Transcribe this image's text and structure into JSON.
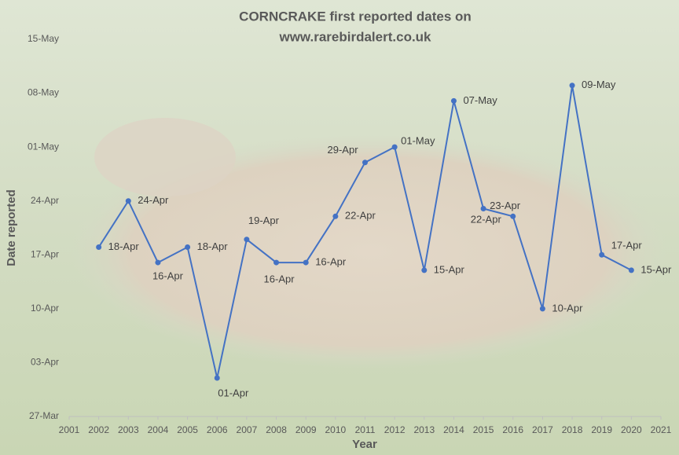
{
  "chart_data": {
    "type": "line",
    "title": "CORNCRAKE first reported dates on",
    "subtitle": "www.rarebirdalert.co.uk",
    "x_label": "Year",
    "y_label": "Date reported",
    "x": [
      2002,
      2003,
      2004,
      2005,
      2006,
      2007,
      2008,
      2009,
      2010,
      2011,
      2012,
      2013,
      2014,
      2015,
      2016,
      2017,
      2018,
      2019,
      2020
    ],
    "series": [
      {
        "name": "First reported date",
        "color": "#4472c4",
        "values": [
          108,
          114,
          106,
          108,
          91,
          109,
          106,
          106,
          112,
          119,
          121,
          105,
          127,
          113,
          112,
          100,
          129,
          107,
          105
        ],
        "value_labels": [
          "18-Apr",
          "24-Apr",
          "16-Apr",
          "18-Apr",
          "01-Apr",
          "19-Apr",
          "16-Apr",
          "16-Apr",
          "22-Apr",
          "29-Apr",
          "01-May",
          "15-Apr",
          "07-May",
          "23-Apr",
          "22-Apr",
          "10-Apr",
          "09-May",
          "17-Apr",
          "15-Apr"
        ]
      }
    ],
    "xlim": [
      2001,
      2021
    ],
    "xticks": [
      2001,
      2002,
      2003,
      2004,
      2005,
      2006,
      2007,
      2008,
      2009,
      2010,
      2011,
      2012,
      2013,
      2014,
      2015,
      2016,
      2017,
      2018,
      2019,
      2020,
      2021
    ],
    "ylim": [
      86,
      135
    ],
    "yticks": [
      {
        "value": 86,
        "label": "27-Mar"
      },
      {
        "value": 93,
        "label": "03-Apr"
      },
      {
        "value": 100,
        "label": "10-Apr"
      },
      {
        "value": 107,
        "label": "17-Apr"
      },
      {
        "value": 114,
        "label": "24-Apr"
      },
      {
        "value": 121,
        "label": "01-May"
      },
      {
        "value": 128,
        "label": "08-May"
      },
      {
        "value": 135,
        "label": "15-May"
      }
    ]
  }
}
